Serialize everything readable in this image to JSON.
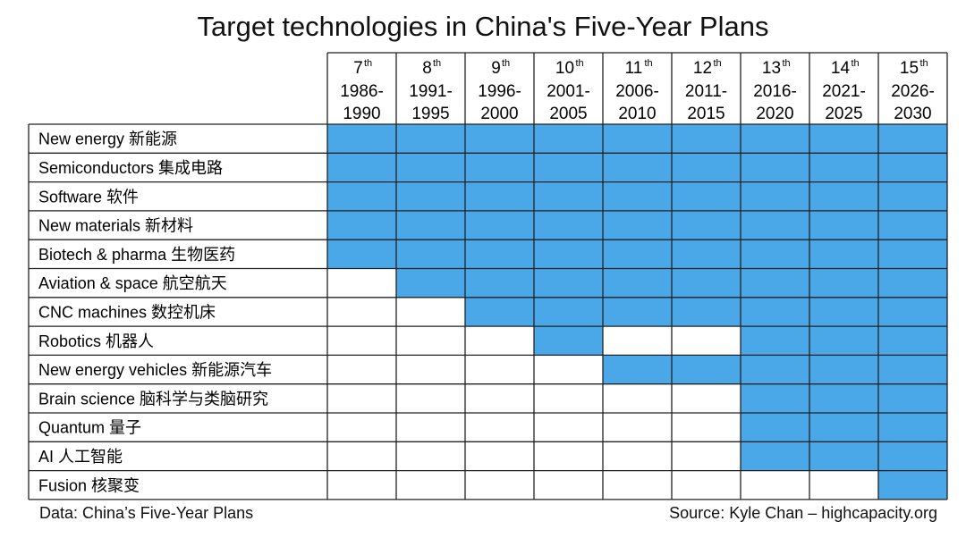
{
  "title": "Target technologies in China's Five-Year Plans",
  "footer": {
    "left": "Data: China’s Five-Year Plans",
    "right": "Source: Kyle Chan – highcapacity.org"
  },
  "colors": {
    "filled": "#4aa8e8",
    "empty": "#ffffff",
    "grid": "#222222"
  },
  "chart_data": {
    "type": "table",
    "title": "Target technologies in China's Five-Year Plans",
    "columns": [
      {
        "num": "7",
        "sup": "th",
        "years_start": "1986-",
        "years_end": "1990"
      },
      {
        "num": "8",
        "sup": "th",
        "years_start": "1991-",
        "years_end": "1995"
      },
      {
        "num": "9",
        "sup": "th",
        "years_start": "1996-",
        "years_end": "2000"
      },
      {
        "num": "10",
        "sup": "th",
        "years_start": "2001-",
        "years_end": "2005"
      },
      {
        "num": "11",
        "sup": "th",
        "years_start": "2006-",
        "years_end": "2010"
      },
      {
        "num": "12",
        "sup": "th",
        "years_start": "2011-",
        "years_end": "2015"
      },
      {
        "num": "13",
        "sup": "th",
        "years_start": "2016-",
        "years_end": "2020"
      },
      {
        "num": "14",
        "sup": "th",
        "years_start": "2021-",
        "years_end": "2025"
      },
      {
        "num": "15",
        "sup": "th",
        "years_start": "2026-",
        "years_end": "2030"
      }
    ],
    "rows": [
      {
        "label": "New energy 新能源",
        "values": [
          1,
          1,
          1,
          1,
          1,
          1,
          1,
          1,
          1
        ]
      },
      {
        "label": "Semiconductors 集成电路",
        "values": [
          1,
          1,
          1,
          1,
          1,
          1,
          1,
          1,
          1
        ]
      },
      {
        "label": "Software 软件",
        "values": [
          1,
          1,
          1,
          1,
          1,
          1,
          1,
          1,
          1
        ]
      },
      {
        "label": "New materials 新材料",
        "values": [
          1,
          1,
          1,
          1,
          1,
          1,
          1,
          1,
          1
        ]
      },
      {
        "label": "Biotech & pharma 生物医药",
        "values": [
          1,
          1,
          1,
          1,
          1,
          1,
          1,
          1,
          1
        ]
      },
      {
        "label": "Aviation & space 航空航天",
        "values": [
          0,
          1,
          1,
          1,
          1,
          1,
          1,
          1,
          1
        ]
      },
      {
        "label": "CNC machines 数控机床",
        "values": [
          0,
          0,
          1,
          1,
          1,
          1,
          1,
          1,
          1
        ]
      },
      {
        "label": "Robotics 机器人",
        "values": [
          0,
          0,
          0,
          1,
          0,
          0,
          1,
          1,
          1
        ]
      },
      {
        "label": "New energy vehicles 新能源汽车",
        "values": [
          0,
          0,
          0,
          0,
          1,
          1,
          1,
          1,
          1
        ]
      },
      {
        "label": "Brain science 脑科学与类脑研究",
        "values": [
          0,
          0,
          0,
          0,
          0,
          0,
          1,
          1,
          1
        ]
      },
      {
        "label": "Quantum 量子",
        "values": [
          0,
          0,
          0,
          0,
          0,
          0,
          1,
          1,
          1
        ]
      },
      {
        "label": "AI 人工智能",
        "values": [
          0,
          0,
          0,
          0,
          0,
          0,
          1,
          1,
          1
        ]
      },
      {
        "label": "Fusion 核聚变",
        "values": [
          0,
          0,
          0,
          0,
          0,
          0,
          0,
          0,
          1
        ]
      }
    ]
  }
}
